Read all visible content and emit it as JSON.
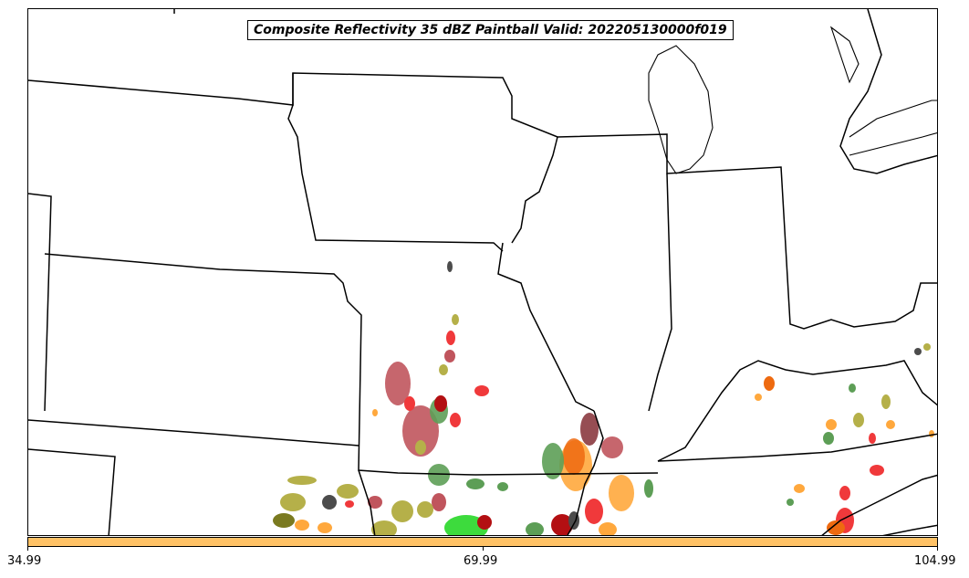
{
  "title": "Composite Reflectivity 35 dBZ Paintball Valid: 202205130000f019",
  "colorbar": {
    "color": "#ffc266",
    "ticks": [
      "34.99",
      "69.99",
      "104.99"
    ]
  },
  "member_colors": [
    "#b5b049",
    "#c0555d",
    "#f0393b",
    "#5d9e56",
    "#ffa83d",
    "#ee6a10",
    "#4c4c4c",
    "#b30f12",
    "#3ddb3d",
    "#8b3a40",
    "#7a7a20"
  ],
  "map_layers": [
    "state-borders",
    "lake-michigan",
    "lake-huron",
    "reflectivity-paintball"
  ]
}
